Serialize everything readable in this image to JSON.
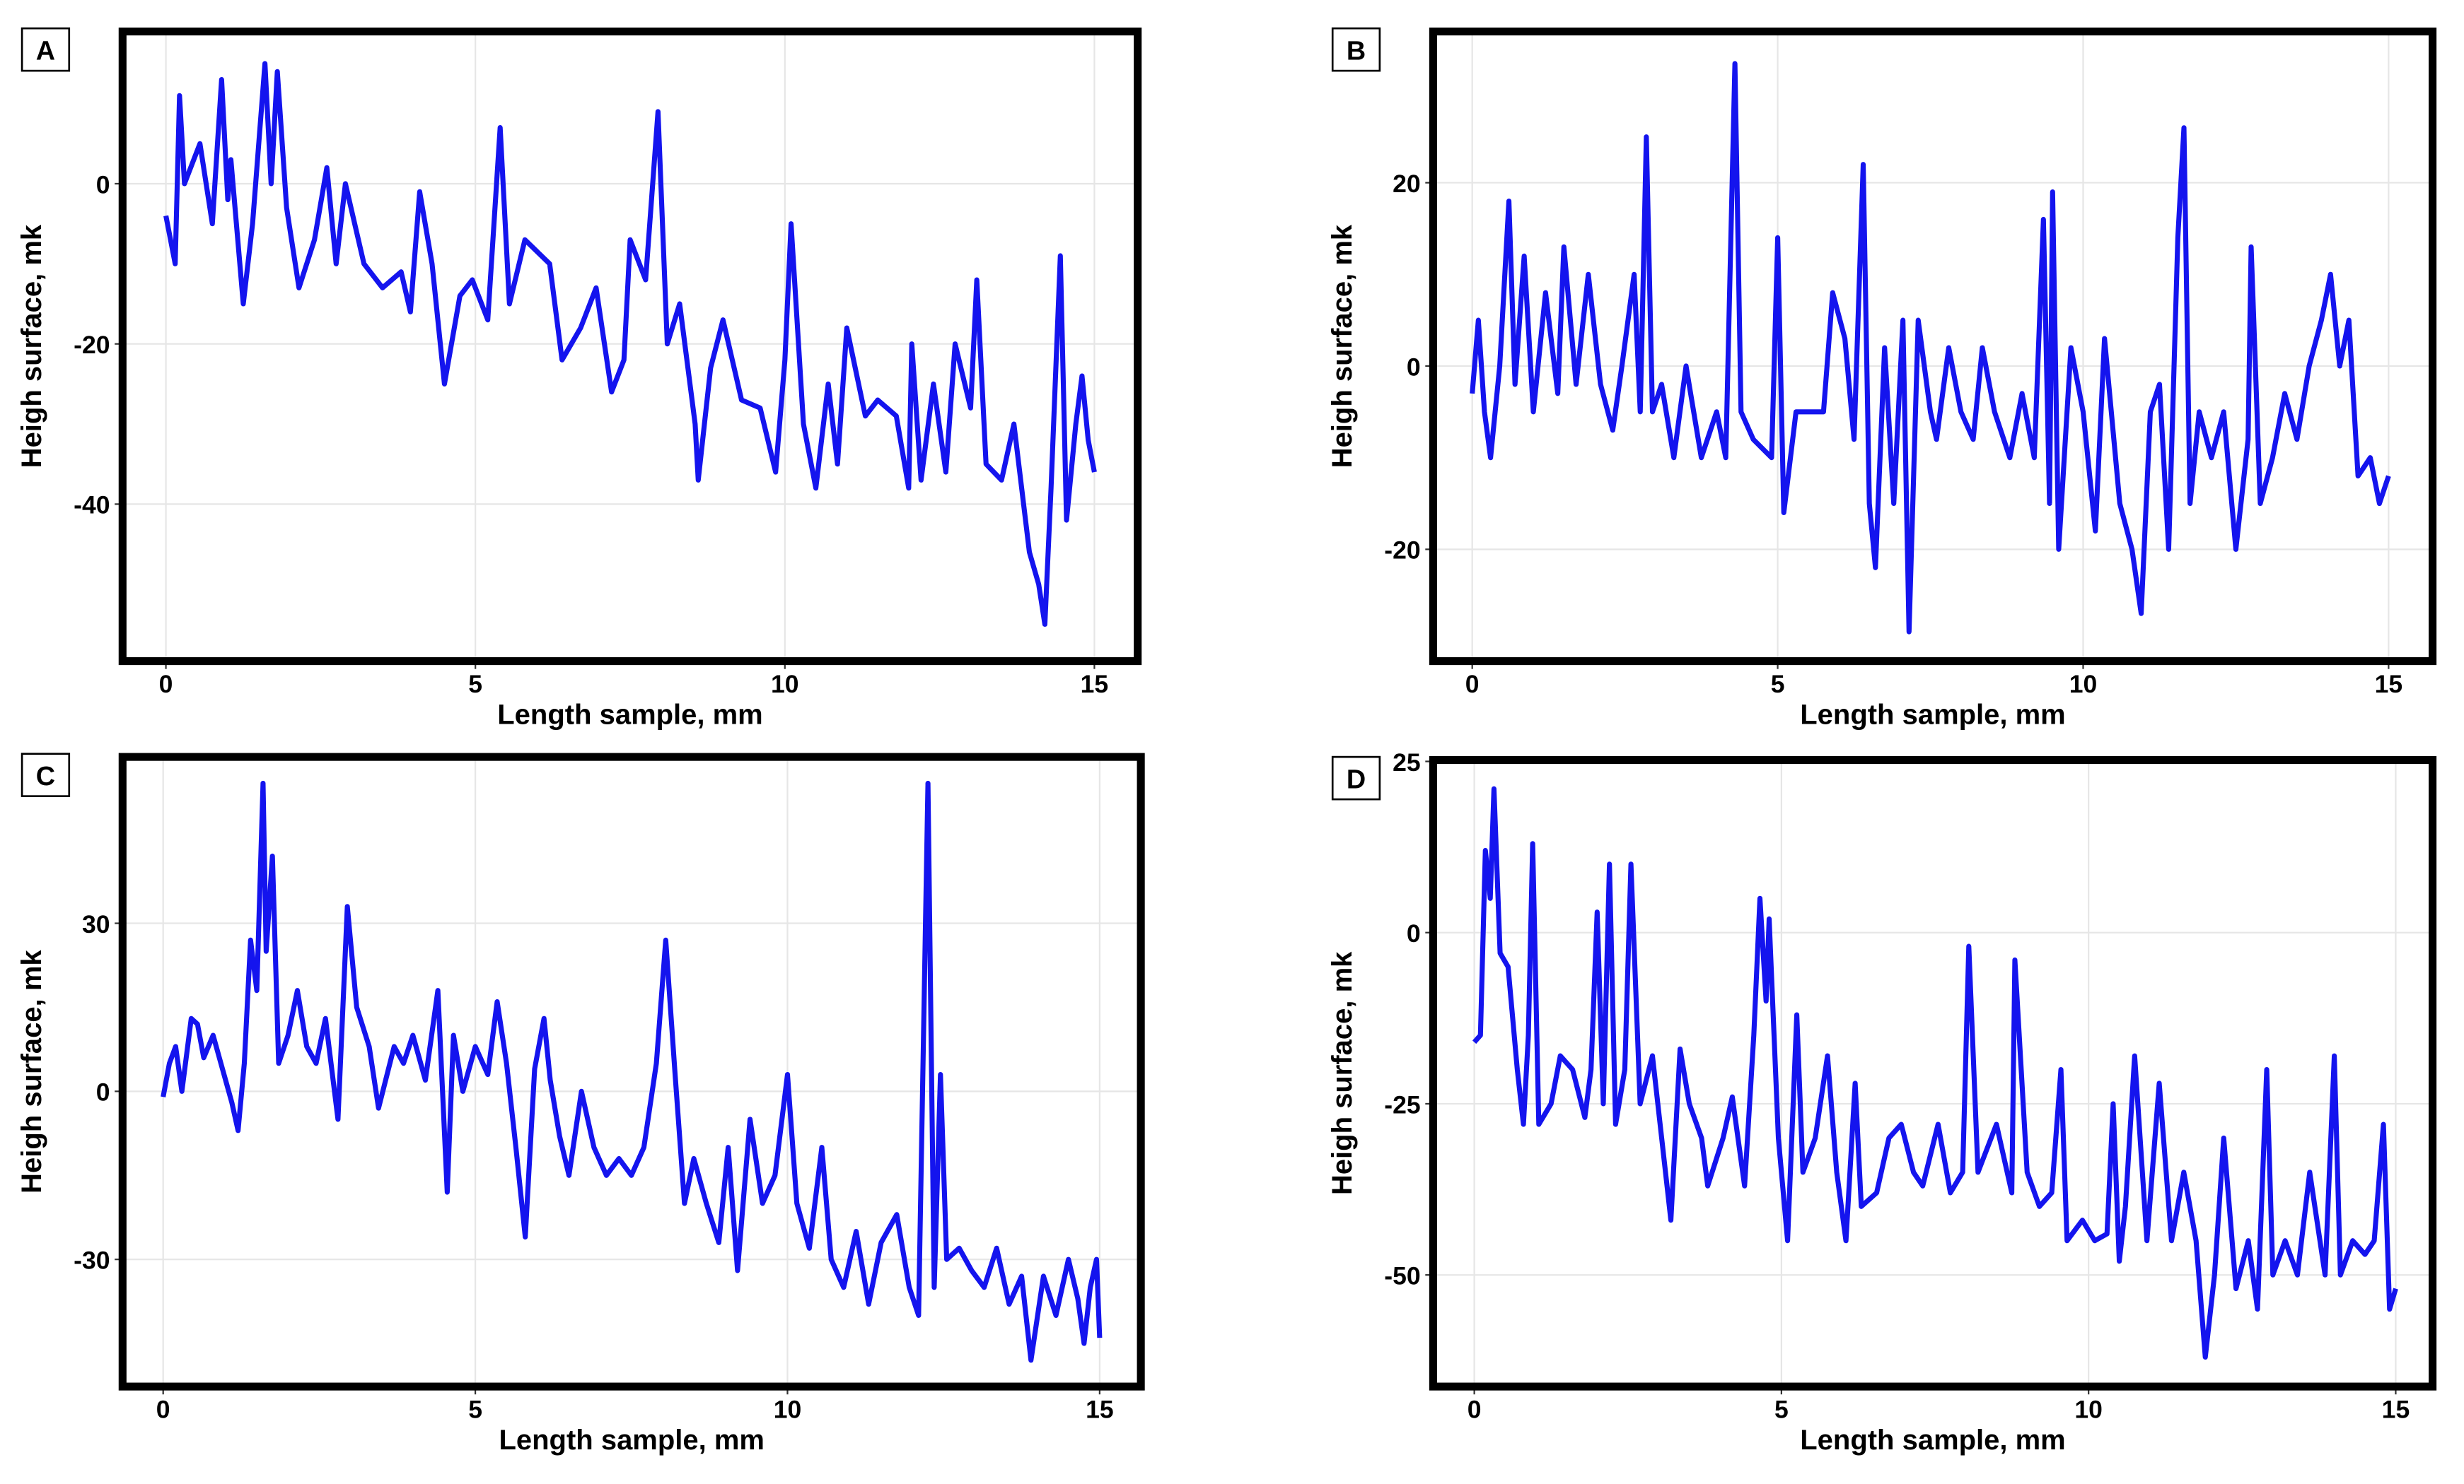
{
  "chart_data": [
    {
      "type": "line",
      "label": "A",
      "xlabel": "Length sample, mm",
      "ylabel": "Heigh surface, mk",
      "color": "#1414ee",
      "grid": true,
      "xlim": [
        -0.7,
        15.7
      ],
      "ylim": [
        -59.6,
        19
      ],
      "xticks": [
        0,
        5,
        10,
        15
      ],
      "yticks": [
        0,
        -20,
        -40
      ],
      "x": [
        0,
        0.15,
        0.22,
        0.3,
        0.55,
        0.75,
        0.9,
        1.0,
        1.05,
        1.25,
        1.4,
        1.6,
        1.7,
        1.8,
        1.95,
        2.15,
        2.4,
        2.6,
        2.75,
        2.9,
        3.2,
        3.5,
        3.8,
        3.95,
        4.1,
        4.3,
        4.5,
        4.75,
        4.95,
        5.2,
        5.4,
        5.55,
        5.8,
        6.2,
        6.4,
        6.7,
        6.95,
        7.2,
        7.4,
        7.5,
        7.75,
        7.95,
        8.1,
        8.3,
        8.55,
        8.6,
        8.8,
        9.0,
        9.3,
        9.6,
        9.85,
        10.0,
        10.1,
        10.3,
        10.5,
        10.7,
        10.85,
        11.0,
        11.3,
        11.5,
        11.8,
        12.0,
        12.05,
        12.2,
        12.4,
        12.6,
        12.75,
        13.0,
        13.1,
        13.25,
        13.5,
        13.7,
        13.95,
        14.1,
        14.2,
        14.3,
        14.45,
        14.55,
        14.7,
        14.8,
        14.9,
        15.0
      ],
      "values": [
        -4,
        -10,
        11,
        0,
        5,
        -5,
        13,
        -2,
        3,
        -15,
        -5,
        15,
        0,
        14,
        -3,
        -13,
        -7,
        2,
        -10,
        0,
        -10,
        -13,
        -11,
        -16,
        -1,
        -10,
        -25,
        -14,
        -12,
        -17,
        7,
        -15,
        -7,
        -10,
        -22,
        -18,
        -13,
        -26,
        -22,
        -7,
        -12,
        9,
        -20,
        -15,
        -30,
        -37,
        -23,
        -17,
        -27,
        -28,
        -36,
        -22,
        -5,
        -30,
        -38,
        -25,
        -35,
        -18,
        -29,
        -27,
        -29,
        -38,
        -20,
        -37,
        -25,
        -36,
        -20,
        -28,
        -12,
        -35,
        -37,
        -30,
        -46,
        -50,
        -55,
        -38,
        -9,
        -42,
        -30,
        -24,
        -32,
        -36
      ]
    },
    {
      "type": "line",
      "label": "B",
      "xlabel": "Length sample, mm",
      "ylabel": "Heigh surface, mk",
      "color": "#1414ee",
      "grid": true,
      "xlim": [
        -0.64,
        15.72
      ],
      "ylim": [
        -32.2,
        36.5
      ],
      "xticks": [
        0,
        5,
        10,
        15
      ],
      "yticks": [
        20,
        0,
        -20
      ],
      "x": [
        0,
        0.1,
        0.2,
        0.3,
        0.45,
        0.6,
        0.7,
        0.85,
        1.0,
        1.2,
        1.4,
        1.5,
        1.7,
        1.9,
        2.1,
        2.3,
        2.45,
        2.65,
        2.75,
        2.85,
        2.95,
        3.1,
        3.3,
        3.5,
        3.75,
        4.0,
        4.15,
        4.3,
        4.4,
        4.6,
        4.9,
        5.0,
        5.1,
        5.3,
        5.6,
        5.75,
        5.9,
        6.1,
        6.25,
        6.4,
        6.5,
        6.6,
        6.75,
        6.9,
        7.05,
        7.15,
        7.3,
        7.5,
        7.6,
        7.8,
        8.0,
        8.2,
        8.35,
        8.55,
        8.8,
        9.0,
        9.2,
        9.35,
        9.45,
        9.5,
        9.6,
        9.8,
        10.0,
        10.2,
        10.35,
        10.6,
        10.8,
        10.95,
        11.1,
        11.25,
        11.4,
        11.55,
        11.65,
        11.75,
        11.9,
        12.1,
        12.3,
        12.5,
        12.7,
        12.75,
        12.9,
        13.1,
        13.3,
        13.5,
        13.7,
        13.9,
        14.05,
        14.2,
        14.35,
        14.5,
        14.7,
        14.85,
        15.0
      ],
      "values": [
        -3,
        5,
        -5,
        -10,
        0,
        18,
        -2,
        12,
        -5,
        8,
        -3,
        13,
        -2,
        10,
        -2,
        -7,
        0,
        10,
        -5,
        25,
        -5,
        -2,
        -10,
        0,
        -10,
        -5,
        -10,
        33,
        -5,
        -8,
        -10,
        14,
        -16,
        -5,
        -5,
        -5,
        8,
        3,
        -8,
        22,
        -15,
        -22,
        2,
        -15,
        5,
        -29,
        5,
        -5,
        -8,
        2,
        -5,
        -8,
        2,
        -5,
        -10,
        -3,
        -10,
        16,
        -15,
        19,
        -20,
        2,
        -5,
        -18,
        3,
        -15,
        -20,
        -27,
        -5,
        -2,
        -20,
        14,
        26,
        -15,
        -5,
        -10,
        -5,
        -20,
        -8,
        13,
        -15,
        -10,
        -3,
        -8,
        0,
        5,
        10,
        0,
        5,
        -12,
        -10,
        -15,
        -12
      ]
    },
    {
      "type": "line",
      "label": "C",
      "xlabel": "Length sample, mm",
      "ylabel": "Heigh surface, mk",
      "color": "#1414ee",
      "grid": true,
      "xlim": [
        -0.65,
        15.66
      ],
      "ylim": [
        -52.7,
        59.7
      ],
      "xticks": [
        0,
        5,
        10,
        15
      ],
      "yticks": [
        30,
        0,
        -30
      ],
      "x": [
        0,
        0.1,
        0.2,
        0.3,
        0.45,
        0.55,
        0.65,
        0.8,
        0.95,
        1.1,
        1.2,
        1.3,
        1.4,
        1.5,
        1.6,
        1.65,
        1.75,
        1.85,
        2.0,
        2.15,
        2.3,
        2.45,
        2.6,
        2.8,
        2.95,
        3.1,
        3.3,
        3.45,
        3.7,
        3.85,
        4.0,
        4.2,
        4.4,
        4.55,
        4.65,
        4.8,
        5.0,
        5.2,
        5.35,
        5.5,
        5.65,
        5.8,
        5.95,
        6.1,
        6.2,
        6.35,
        6.5,
        6.7,
        6.9,
        7.1,
        7.3,
        7.5,
        7.7,
        7.9,
        8.05,
        8.2,
        8.35,
        8.5,
        8.7,
        8.9,
        9.05,
        9.2,
        9.4,
        9.6,
        9.8,
        10.0,
        10.15,
        10.35,
        10.55,
        10.7,
        10.9,
        11.1,
        11.3,
        11.5,
        11.75,
        11.95,
        12.1,
        12.25,
        12.35,
        12.45,
        12.55,
        12.75,
        12.95,
        13.15,
        13.35,
        13.55,
        13.75,
        13.9,
        14.1,
        14.3,
        14.5,
        14.65,
        14.75,
        14.85,
        14.95,
        15.0
      ],
      "values": [
        -1,
        5,
        8,
        0,
        13,
        12,
        6,
        10,
        4,
        -2,
        -7,
        5,
        27,
        18,
        55,
        25,
        42,
        5,
        10,
        18,
        8,
        5,
        13,
        -5,
        33,
        15,
        8,
        -3,
        8,
        5,
        10,
        2,
        18,
        -18,
        10,
        0,
        8,
        3,
        16,
        5,
        -10,
        -26,
        4,
        13,
        2,
        -8,
        -15,
        0,
        -10,
        -15,
        -12,
        -15,
        -10,
        5,
        27,
        3,
        -20,
        -12,
        -20,
        -27,
        -10,
        -32,
        -5,
        -20,
        -15,
        3,
        -20,
        -28,
        -10,
        -30,
        -35,
        -25,
        -38,
        -27,
        -22,
        -35,
        -40,
        55,
        -35,
        3,
        -30,
        -28,
        -32,
        -35,
        -28,
        -38,
        -33,
        -48,
        -33,
        -40,
        -30,
        -37,
        -45,
        -35,
        -30,
        -44
      ]
    },
    {
      "type": "line",
      "label": "D",
      "xlabel": "Length sample, mm",
      "ylabel": "Heigh surface, mk",
      "color": "#1414ee",
      "grid": true,
      "xlim": [
        -0.67,
        15.6
      ],
      "ylim": [
        -66.3,
        25.2
      ],
      "xticks": [
        0,
        5,
        10,
        15
      ],
      "yticks": [
        25,
        0,
        -25,
        -50
      ],
      "x": [
        0,
        0.1,
        0.18,
        0.26,
        0.32,
        0.42,
        0.55,
        0.7,
        0.8,
        0.88,
        0.95,
        1.05,
        1.25,
        1.4,
        1.6,
        1.8,
        1.9,
        2.0,
        2.1,
        2.2,
        2.3,
        2.45,
        2.55,
        2.7,
        2.9,
        3.05,
        3.2,
        3.35,
        3.5,
        3.7,
        3.8,
        4.05,
        4.2,
        4.4,
        4.55,
        4.65,
        4.75,
        4.8,
        4.95,
        5.1,
        5.25,
        5.35,
        5.55,
        5.75,
        5.9,
        6.05,
        6.2,
        6.3,
        6.55,
        6.75,
        6.95,
        7.15,
        7.3,
        7.55,
        7.75,
        7.95,
        8.05,
        8.2,
        8.5,
        8.75,
        8.8,
        9.0,
        9.2,
        9.4,
        9.55,
        9.65,
        9.9,
        10.1,
        10.3,
        10.4,
        10.5,
        10.6,
        10.75,
        10.95,
        11.15,
        11.35,
        11.55,
        11.75,
        11.9,
        12.05,
        12.2,
        12.4,
        12.6,
        12.75,
        12.9,
        13.0,
        13.2,
        13.4,
        13.6,
        13.85,
        14.0,
        14.1,
        14.3,
        14.5,
        14.65,
        14.8,
        14.9,
        15.0
      ],
      "values": [
        -16,
        -15,
        12,
        5,
        21,
        -3,
        -5,
        -20,
        -28,
        -15,
        13,
        -28,
        -25,
        -18,
        -20,
        -27,
        -20,
        3,
        -25,
        10,
        -28,
        -20,
        10,
        -25,
        -18,
        -30,
        -42,
        -17,
        -25,
        -30,
        -37,
        -30,
        -24,
        -37,
        -15,
        5,
        -10,
        2,
        -30,
        -45,
        -12,
        -35,
        -30,
        -18,
        -35,
        -45,
        -22,
        -40,
        -38,
        -30,
        -28,
        -35,
        -37,
        -28,
        -38,
        -35,
        -2,
        -35,
        -28,
        -38,
        -4,
        -35,
        -40,
        -38,
        -20,
        -45,
        -42,
        -45,
        -44,
        -25,
        -48,
        -40,
        -18,
        -45,
        -22,
        -45,
        -35,
        -45,
        -62,
        -50,
        -30,
        -52,
        -45,
        -55,
        -20,
        -50,
        -45,
        -50,
        -35,
        -50,
        -18,
        -50,
        -45,
        -47,
        -45,
        -28,
        -55,
        -52
      ]
    }
  ]
}
